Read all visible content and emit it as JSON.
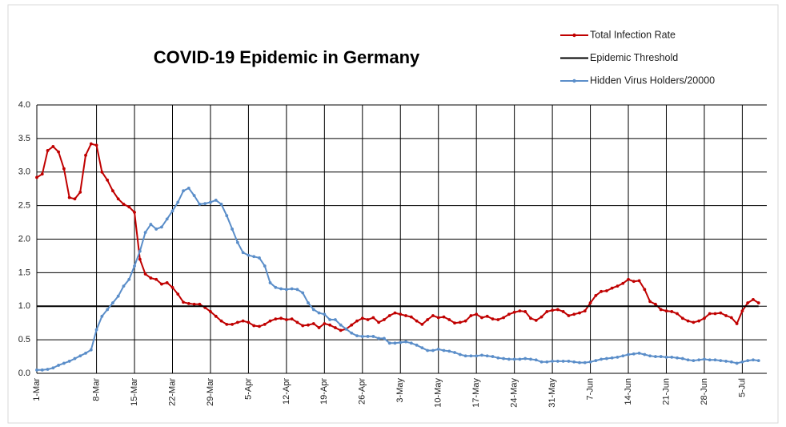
{
  "chart_data": {
    "type": "line",
    "title": "COVID-19 Epidemic in Germany",
    "categories": [
      "1-Mar",
      null,
      null,
      null,
      null,
      null,
      null,
      null,
      null,
      null,
      null,
      "8-Mar",
      null,
      null,
      null,
      null,
      null,
      null,
      "15-Mar",
      null,
      null,
      null,
      null,
      null,
      null,
      "22-Mar",
      null,
      null,
      null,
      null,
      null,
      null,
      "29-Mar",
      null,
      null,
      null,
      null,
      null,
      null,
      "5-Apr",
      null,
      null,
      null,
      null,
      null,
      null,
      "12-Apr",
      null,
      null,
      null,
      null,
      null,
      null,
      "19-Apr",
      null,
      null,
      null,
      null,
      null,
      null,
      "26-Apr",
      null,
      null,
      null,
      null,
      null,
      null,
      "3-May",
      null,
      null,
      null,
      null,
      null,
      null,
      "10-May",
      null,
      null,
      null,
      null,
      null,
      null,
      "17-May",
      null,
      null,
      null,
      null,
      null,
      null,
      "24-May",
      null,
      null,
      null,
      null,
      null,
      null,
      "31-May",
      null,
      null,
      null,
      null,
      null,
      null,
      "7-Jun",
      null,
      null,
      null,
      null,
      null,
      null,
      "14-Jun",
      null,
      null,
      null,
      null,
      null,
      null,
      "21-Jun",
      null,
      null,
      null,
      null,
      null,
      null,
      "28-Jun",
      null,
      null,
      null,
      null,
      null,
      null,
      "5-Jul",
      null,
      null,
      null
    ],
    "series": [
      {
        "name": "Total Infection Rate",
        "color": "#c00000",
        "markers": true,
        "values": [
          2.92,
          2.97,
          3.32,
          3.38,
          3.3,
          3.05,
          2.62,
          2.6,
          2.7,
          3.25,
          3.42,
          3.4,
          3.0,
          2.88,
          2.72,
          2.6,
          2.52,
          2.48,
          2.4,
          1.7,
          1.48,
          1.42,
          1.4,
          1.33,
          1.35,
          1.28,
          1.18,
          1.06,
          1.04,
          1.03,
          1.03,
          0.98,
          0.92,
          0.85,
          0.78,
          0.73,
          0.73,
          0.76,
          0.78,
          0.76,
          0.71,
          0.7,
          0.73,
          0.78,
          0.81,
          0.82,
          0.8,
          0.81,
          0.76,
          0.71,
          0.72,
          0.74,
          0.68,
          0.74,
          0.72,
          0.68,
          0.64,
          0.66,
          0.72,
          0.78,
          0.82,
          0.8,
          0.83,
          0.76,
          0.8,
          0.86,
          0.9,
          0.88,
          0.86,
          0.84,
          0.78,
          0.73,
          0.8,
          0.86,
          0.83,
          0.84,
          0.8,
          0.75,
          0.76,
          0.78,
          0.86,
          0.88,
          0.83,
          0.85,
          0.81,
          0.8,
          0.83,
          0.88,
          0.91,
          0.93,
          0.92,
          0.82,
          0.79,
          0.84,
          0.92,
          0.94,
          0.95,
          0.92,
          0.86,
          0.88,
          0.9,
          0.93,
          1.05,
          1.16,
          1.22,
          1.23,
          1.27,
          1.3,
          1.34,
          1.4,
          1.37,
          1.38,
          1.25,
          1.07,
          1.03,
          0.95,
          0.93,
          0.92,
          0.89,
          0.82,
          0.78,
          0.76,
          0.78,
          0.82,
          0.89,
          0.89,
          0.9,
          0.86,
          0.83,
          0.74,
          0.93,
          1.05,
          1.1,
          1.05
        ]
      },
      {
        "name": "Epidemic Threshold",
        "color": "#000000",
        "markers": false,
        "values": [
          1,
          1,
          1,
          1,
          1,
          1,
          1,
          1,
          1,
          1,
          1,
          1,
          1,
          1,
          1,
          1,
          1,
          1,
          1,
          1,
          1,
          1,
          1,
          1,
          1,
          1,
          1,
          1,
          1,
          1,
          1,
          1,
          1,
          1,
          1,
          1,
          1,
          1,
          1,
          1,
          1,
          1,
          1,
          1,
          1,
          1,
          1,
          1,
          1,
          1,
          1,
          1,
          1,
          1,
          1,
          1,
          1,
          1,
          1,
          1,
          1,
          1,
          1,
          1,
          1,
          1,
          1,
          1,
          1,
          1,
          1,
          1,
          1,
          1,
          1,
          1,
          1,
          1,
          1,
          1,
          1,
          1,
          1,
          1,
          1,
          1,
          1,
          1,
          1,
          1,
          1,
          1,
          1,
          1,
          1,
          1,
          1,
          1,
          1,
          1,
          1,
          1,
          1,
          1,
          1,
          1,
          1,
          1,
          1,
          1,
          1,
          1,
          1,
          1,
          1,
          1,
          1,
          1,
          1,
          1,
          1,
          1,
          1,
          1,
          1,
          1,
          1,
          1,
          1,
          1,
          1,
          1,
          1,
          1
        ]
      },
      {
        "name": "Hidden Virus Holders/20000",
        "color": "#5b8ec9",
        "markers": true,
        "values": [
          0.05,
          0.05,
          0.06,
          0.08,
          0.12,
          0.15,
          0.18,
          0.22,
          0.26,
          0.3,
          0.35,
          0.65,
          0.85,
          0.95,
          1.05,
          1.15,
          1.3,
          1.4,
          1.6,
          1.82,
          2.1,
          2.22,
          2.15,
          2.18,
          2.3,
          2.42,
          2.55,
          2.72,
          2.76,
          2.65,
          2.52,
          2.53,
          2.55,
          2.58,
          2.52,
          2.35,
          2.15,
          1.95,
          1.8,
          1.76,
          1.74,
          1.72,
          1.6,
          1.35,
          1.28,
          1.26,
          1.25,
          1.26,
          1.25,
          1.2,
          1.05,
          0.95,
          0.9,
          0.88,
          0.8,
          0.8,
          0.72,
          0.66,
          0.6,
          0.56,
          0.55,
          0.55,
          0.55,
          0.52,
          0.52,
          0.45,
          0.45,
          0.46,
          0.47,
          0.45,
          0.42,
          0.38,
          0.34,
          0.34,
          0.36,
          0.34,
          0.33,
          0.31,
          0.28,
          0.26,
          0.26,
          0.26,
          0.27,
          0.26,
          0.25,
          0.23,
          0.22,
          0.21,
          0.21,
          0.21,
          0.22,
          0.21,
          0.2,
          0.17,
          0.17,
          0.18,
          0.18,
          0.18,
          0.18,
          0.17,
          0.16,
          0.16,
          0.17,
          0.19,
          0.21,
          0.22,
          0.23,
          0.24,
          0.26,
          0.28,
          0.29,
          0.3,
          0.28,
          0.26,
          0.25,
          0.25,
          0.24,
          0.24,
          0.23,
          0.22,
          0.2,
          0.19,
          0.2,
          0.21,
          0.2,
          0.2,
          0.19,
          0.18,
          0.17,
          0.15,
          0.17,
          0.19,
          0.2,
          0.19
        ]
      }
    ],
    "ylim": [
      0,
      4
    ],
    "yticks": [
      {
        "value": 0,
        "label": "0.0"
      },
      0.5,
      {
        "value": 1,
        "label": "1.0"
      },
      1.5,
      {
        "value": 2,
        "label": "2.0"
      },
      2.5,
      {
        "value": 3,
        "label": "3.0"
      },
      3.5,
      {
        "value": 4,
        "label": "4.0"
      }
    ],
    "grid": true,
    "legend": "top-right"
  }
}
